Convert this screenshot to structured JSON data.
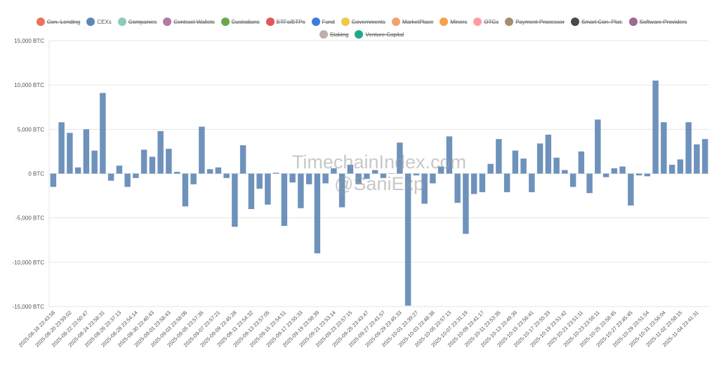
{
  "legend": [
    {
      "name": "Con. Lending",
      "color": "#e8735a",
      "active": false
    },
    {
      "name": "CEXs",
      "color": "#5e86b4",
      "active": true
    },
    {
      "name": "Companies",
      "color": "#8ec9c0",
      "active": false
    },
    {
      "name": "Contract Wallets",
      "color": "#b07aa1",
      "active": false
    },
    {
      "name": "Custodians",
      "color": "#6aa84f",
      "active": false
    },
    {
      "name": "ETFs/ETPs",
      "color": "#e15759",
      "active": false
    },
    {
      "name": "Fund",
      "color": "#3b7ddd",
      "active": false
    },
    {
      "name": "Governments",
      "color": "#edc948",
      "active": false
    },
    {
      "name": "MarketPlace",
      "color": "#f1a36c",
      "active": false
    },
    {
      "name": "Miners",
      "color": "#f7a04b",
      "active": false
    },
    {
      "name": "OTCs",
      "color": "#ff9da7",
      "active": false
    },
    {
      "name": "Payment Processor",
      "color": "#a98b6f",
      "active": false
    },
    {
      "name": "Smart Con. Plat.",
      "color": "#4a4a4a",
      "active": false
    },
    {
      "name": "Software Providers",
      "color": "#9c6a8f",
      "active": false
    },
    {
      "name": "Staking",
      "color": "#bab0ac",
      "active": false
    },
    {
      "name": "Venture Capital",
      "color": "#1fa98a",
      "active": false
    }
  ],
  "watermark": {
    "line1": "TimechainIndex.com",
    "line2": "@SaniExp"
  },
  "chart_data": {
    "type": "bar",
    "title": "",
    "xlabel": "",
    "ylabel": "",
    "unit": "BTC",
    "ylim": [
      -15000,
      15000
    ],
    "yticks": [
      15000,
      10000,
      5000,
      0,
      -5000,
      -10000,
      -15000
    ],
    "ytick_labels": [
      "15,000 BTC",
      "10,000 BTC",
      "5,000 BTC",
      "0 BTC",
      "-5,000 BTC",
      "-10,000 BTC",
      "-15,000 BTC"
    ],
    "grid": true,
    "bar_color": "#5e86b4",
    "xtick_labels": [
      "2025-08-18 23:43:58",
      "2025-08-20 23:59:02",
      "2025-08-22 23:50:47",
      "2025-08-24 23:58:31",
      "2025-08-26 23:37:13",
      "2025-08-28 23:54:14",
      "2025-08-30 23:40:43",
      "2025-09-01 23:58:43",
      "2025-09-03 23:58:06",
      "2025-09-05 23:57:35",
      "2025-09-07 23:57:21",
      "2025-09-09 23:45:28",
      "2025-09-11 23:54:32",
      "2025-09-13 23:57:05",
      "2025-09-15 23:54:51",
      "2025-09-17 23:55:33",
      "2025-09-19 23:58:39",
      "2025-09-21 23:53:14",
      "2025-09-23 23:57:15",
      "2025-09-25 23:43:47",
      "2025-09-27 23:41:57",
      "2025-09-29 23:45:33",
      "2025-10-01 23:39:27",
      "2025-10-03 23:48:38",
      "2025-10-05 23:57:13",
      "2025-10-07 23:31:19",
      "2025-10-09 23:41:17",
      "2025-10-11 23:53:35",
      "2025-10-13 23:49:39",
      "2025-10-15 23:56:41",
      "2025-10-17 23:55:33",
      "2025-10-19 23:51:42",
      "2025-10-21 23:51:11",
      "2025-10-23 23:56:11",
      "2025-10-25 23:58:45",
      "2025-10-27 23:45:45",
      "2025-10-29 23:51:54",
      "2025-10-31 23:56:04",
      "2025-11-02 23:58:15",
      "2025-11-04 23:41:31"
    ],
    "values": [
      -1500,
      5800,
      4600,
      700,
      5000,
      2600,
      9100,
      -800,
      900,
      -1500,
      -500,
      2700,
      1900,
      4800,
      2800,
      200,
      -3700,
      -1200,
      5300,
      500,
      700,
      -500,
      -6000,
      3200,
      -4000,
      -1700,
      -3500,
      100,
      -5900,
      -1000,
      -3900,
      -1200,
      -9000,
      -1100,
      600,
      -3800,
      1000,
      -1200,
      -600,
      400,
      -500,
      0,
      3500,
      -14900,
      -200,
      -3400,
      -1100,
      800,
      4200,
      -3300,
      -6800,
      -2300,
      -2100,
      1100,
      3900,
      -2100,
      2600,
      1700,
      -2100,
      3400,
      4400,
      1800,
      400,
      -1500,
      2500,
      -2200,
      6100,
      -400,
      600,
      800,
      -3600,
      -200,
      -300,
      10500,
      5800,
      1000,
      1600,
      5800,
      3300,
      3900
    ]
  }
}
